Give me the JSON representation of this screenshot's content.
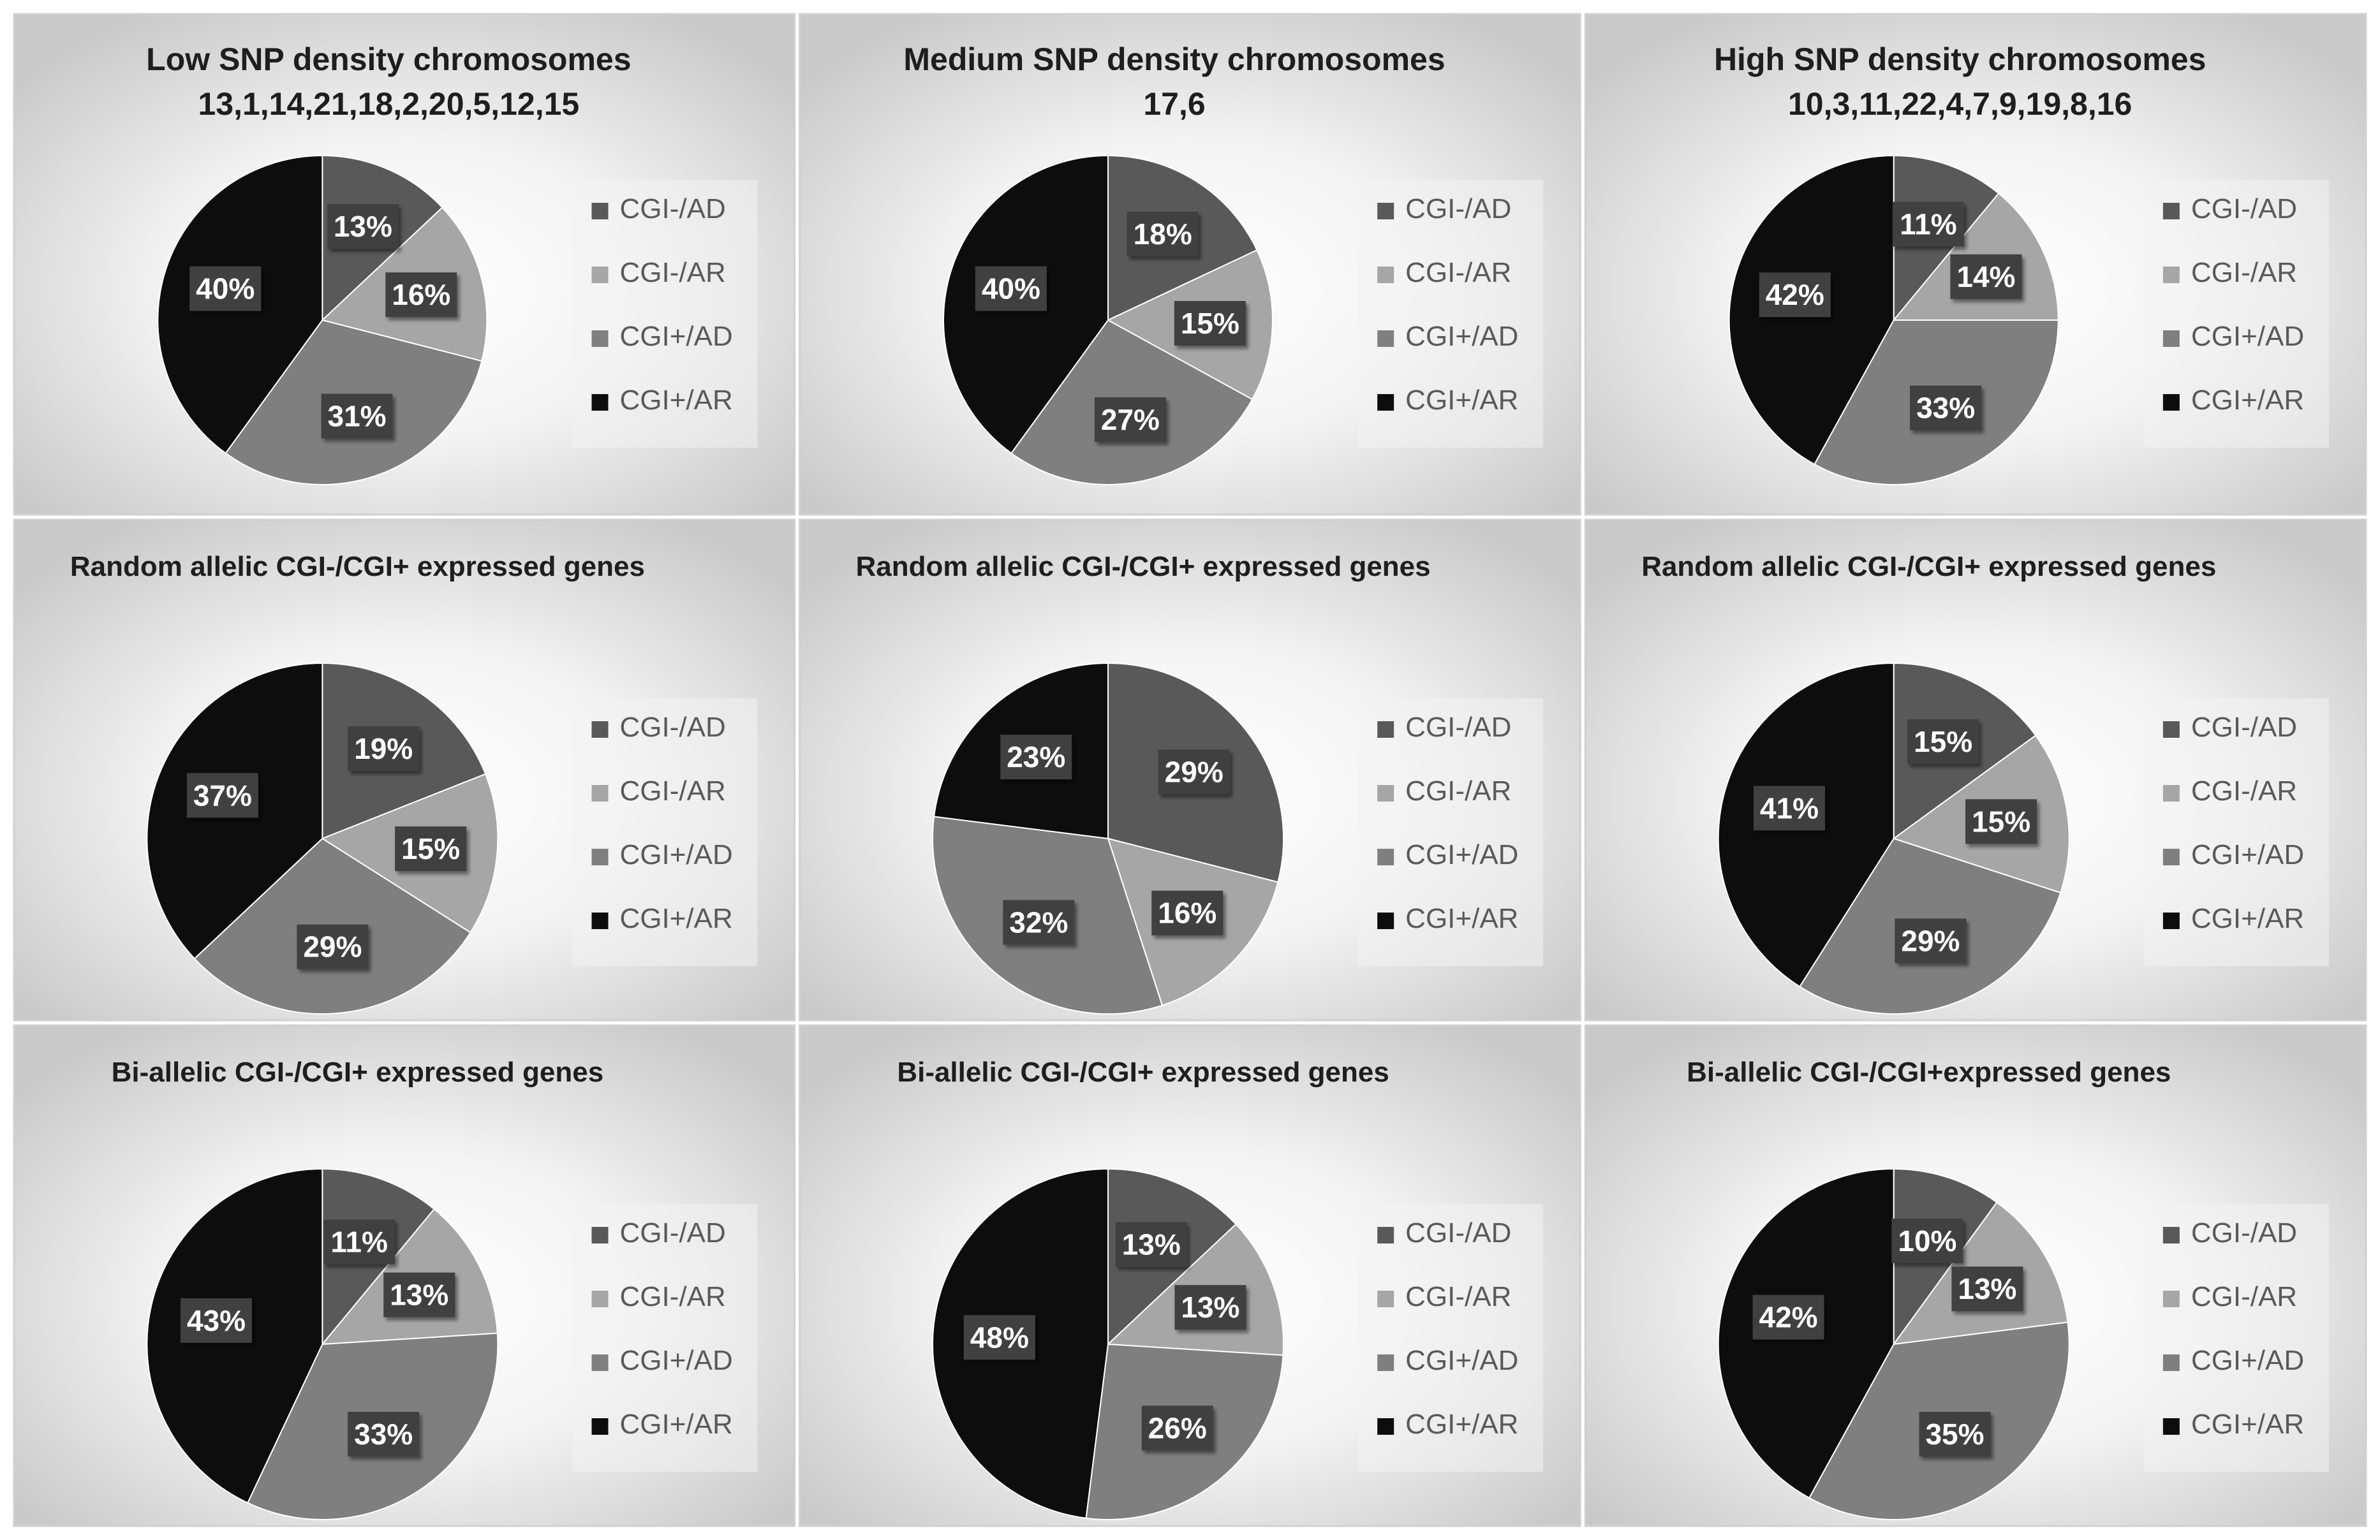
{
  "colors": {
    "CGI-/AD": "#595959",
    "CGI-/AR": "#a6a6a6",
    "CGI+/AD": "#7f7f7f",
    "CGI+/AR": "#0d0d0d",
    "label_box": "#404040",
    "panel_border": "#d0d0d0"
  },
  "chart_data": [
    {
      "type": "pie",
      "title": "Low SNP density chromosomes",
      "subtitle": "13,1,14,21,18,2,20,5,12,15",
      "categories": [
        "CGI-/AD",
        "CGI-/AR",
        "CGI+/AD",
        "CGI+/AR"
      ],
      "values": [
        13,
        16,
        31,
        40
      ],
      "labels": [
        "13%",
        "16%",
        "31%",
        "40%"
      ],
      "legend": [
        "CGI-/AD",
        "CGI-/AR",
        "CGI+/AD",
        "CGI+/AR"
      ],
      "legend_position": "right"
    },
    {
      "type": "pie",
      "title": "Medium SNP density chromosomes",
      "subtitle": "17,6",
      "categories": [
        "CGI-/AD",
        "CGI-/AR",
        "CGI+/AD",
        "CGI+/AR"
      ],
      "values": [
        18,
        15,
        27,
        40
      ],
      "labels": [
        "18%",
        "15%",
        "27%",
        "40%"
      ],
      "legend": [
        "CGI-/AD",
        "CGI-/AR",
        "CGI+/AD",
        "CGI+/AR"
      ],
      "legend_position": "right"
    },
    {
      "type": "pie",
      "title": "High SNP density chromosomes",
      "subtitle": "10,3,11,22,4,7,9,19,8,16",
      "categories": [
        "CGI-/AD",
        "CGI-/AR",
        "CGI+/AD",
        "CGI+/AR"
      ],
      "values": [
        11,
        14,
        33,
        42
      ],
      "labels": [
        "11%",
        "14%",
        "33%",
        "42%"
      ],
      "legend": [
        "CGI-/AD",
        "CGI-/AR",
        "CGI+/AD",
        "CGI+/AR"
      ],
      "legend_position": "right"
    },
    {
      "type": "pie",
      "title": "Random allelic CGI-/CGI+ expressed genes",
      "subtitle": "",
      "categories": [
        "CGI-/AD",
        "CGI-/AR",
        "CGI+/AD",
        "CGI+/AR"
      ],
      "values": [
        19,
        15,
        29,
        37
      ],
      "labels": [
        "19%",
        "15%",
        "29%",
        "37%"
      ],
      "legend": [
        "CGI-/AD",
        "CGI-/AR",
        "CGI+/AD",
        "CGI+/AR"
      ],
      "legend_position": "right"
    },
    {
      "type": "pie",
      "title": "Random allelic CGI-/CGI+ expressed genes",
      "subtitle": "",
      "categories": [
        "CGI-/AD",
        "CGI-/AR",
        "CGI+/AD",
        "CGI+/AR"
      ],
      "values": [
        29,
        16,
        32,
        23
      ],
      "labels": [
        "29%",
        "16%",
        "32%",
        "23%"
      ],
      "legend": [
        "CGI-/AD",
        "CGI-/AR",
        "CGI+/AD",
        "CGI+/AR"
      ],
      "legend_position": "right"
    },
    {
      "type": "pie",
      "title": "Random allelic CGI-/CGI+ expressed genes",
      "subtitle": "",
      "categories": [
        "CGI-/AD",
        "CGI-/AR",
        "CGI+/AD",
        "CGI+/AR"
      ],
      "values": [
        15,
        15,
        29,
        41
      ],
      "labels": [
        "15%",
        "15%",
        "29%",
        "41%"
      ],
      "legend": [
        "CGI-/AD",
        "CGI-/AR",
        "CGI+/AD",
        "CGI+/AR"
      ],
      "legend_position": "right"
    },
    {
      "type": "pie",
      "title": "Bi-allelic CGI-/CGI+ expressed genes",
      "subtitle": "",
      "categories": [
        "CGI-/AD",
        "CGI-/AR",
        "CGI+/AD",
        "CGI+/AR"
      ],
      "values": [
        11,
        13,
        33,
        43
      ],
      "labels": [
        "11%",
        "13%",
        "33%",
        "43%"
      ],
      "legend": [
        "CGI-/AD",
        "CGI-/AR",
        "CGI+/AD",
        "CGI+/AR"
      ],
      "legend_position": "right"
    },
    {
      "type": "pie",
      "title": "Bi-allelic CGI-/CGI+ expressed genes",
      "subtitle": "",
      "categories": [
        "CGI-/AD",
        "CGI-/AR",
        "CGI+/AD",
        "CGI+/AR"
      ],
      "values": [
        13,
        13,
        26,
        48
      ],
      "labels": [
        "13%",
        "13%",
        "26%",
        "48%"
      ],
      "legend": [
        "CGI-/AD",
        "CGI-/AR",
        "CGI+/AD",
        "CGI+/AR"
      ],
      "legend_position": "right"
    },
    {
      "type": "pie",
      "title": "Bi-allelic CGI-/CGI+expressed genes",
      "subtitle": "",
      "categories": [
        "CGI-/AD",
        "CGI-/AR",
        "CGI+/AD",
        "CGI+/AR"
      ],
      "values": [
        10,
        13,
        35,
        42
      ],
      "labels": [
        "10%",
        "13%",
        "35%",
        "42%"
      ],
      "legend": [
        "CGI-/AD",
        "CGI-/AR",
        "CGI+/AD",
        "CGI+/AR"
      ],
      "legend_position": "right"
    }
  ]
}
